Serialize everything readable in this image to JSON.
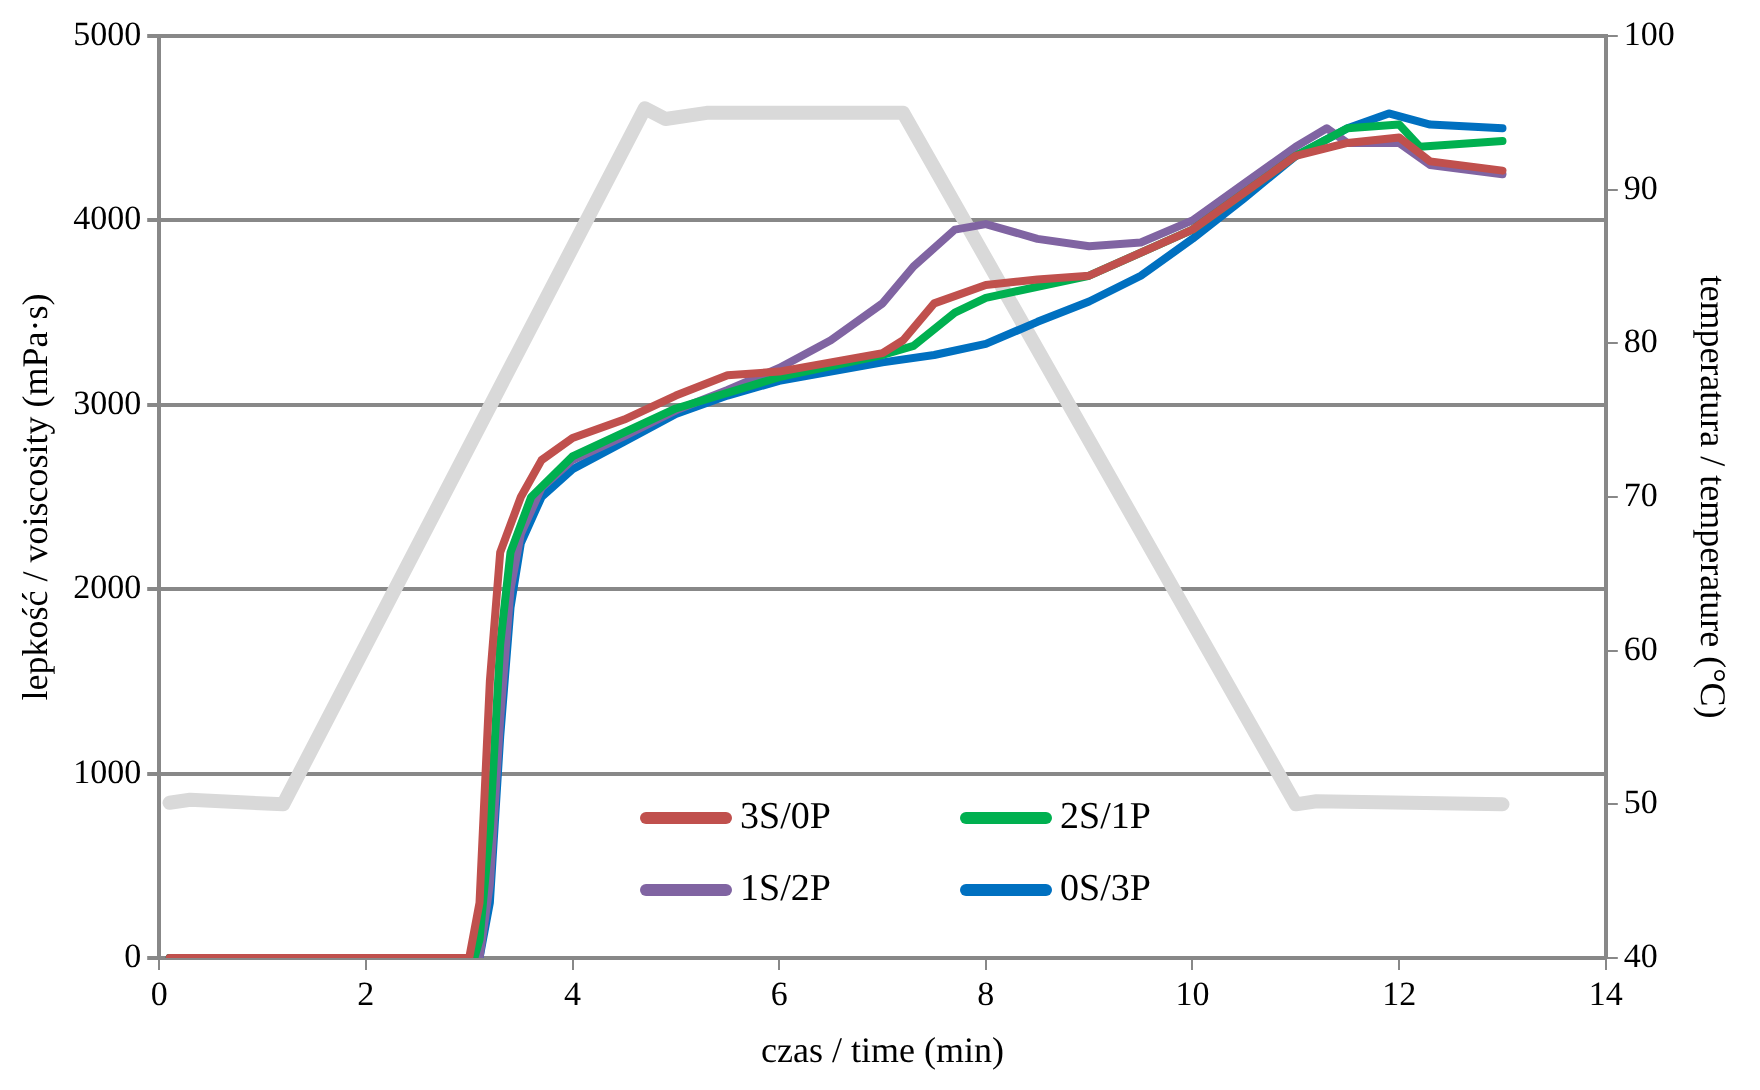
{
  "chart_data": {
    "type": "line",
    "xlabel": "czas / time (min)",
    "ylabel": "lepkość / voiscosity (mPa·s)",
    "y2label": "temperatura / temperature (°C)",
    "xlim": [
      0,
      14
    ],
    "xticks": [
      0,
      2,
      4,
      6,
      8,
      10,
      12,
      14
    ],
    "ylim": [
      0,
      5000
    ],
    "yticks": [
      0,
      1000,
      2000,
      3000,
      4000,
      5000
    ],
    "y2lim": [
      40,
      100
    ],
    "y2ticks": [
      40,
      50,
      60,
      70,
      80,
      90,
      100
    ],
    "grid": "y",
    "legend": "bottom",
    "marker": "none",
    "line_style": "solid",
    "series": [
      {
        "axis": "y2",
        "color": "#d9d9d9",
        "x": [
          0.1,
          0.3,
          1.2,
          4.7,
          4.9,
          5.3,
          7.2,
          11.0,
          11.2,
          13.0
        ],
        "values": [
          50.1,
          50.3,
          50,
          95.3,
          94.6,
          95,
          95,
          50,
          50.2,
          50
        ]
      },
      {
        "name": "3S/0P",
        "color": "#c0504d",
        "x": [
          0.1,
          3.0,
          3.1,
          3.2,
          3.3,
          3.5,
          3.7,
          4,
          4.5,
          5,
          5.5,
          6,
          6.5,
          7,
          7.2,
          7.5,
          8,
          8.5,
          9,
          10,
          11,
          11.5,
          12,
          12.3,
          13
        ],
        "values": [
          0,
          0,
          300,
          1500,
          2200,
          2500,
          2700,
          2820,
          2920,
          3050,
          3160,
          3180,
          3230,
          3280,
          3350,
          3550,
          3650,
          3680,
          3700,
          3950,
          4350,
          4420,
          4450,
          4320,
          4270
        ]
      },
      {
        "name": "2S/1P",
        "color": "#00b050",
        "x": [
          0.1,
          3.05,
          3.1,
          3.2,
          3.3,
          3.4,
          3.6,
          4,
          4.5,
          5,
          6,
          7,
          7.3,
          7.7,
          8,
          9,
          10,
          11,
          11.5,
          12,
          12.2,
          13
        ],
        "values": [
          0,
          0,
          100,
          700,
          1700,
          2200,
          2500,
          2720,
          2850,
          2980,
          3150,
          3270,
          3320,
          3500,
          3580,
          3700,
          3950,
          4350,
          4500,
          4520,
          4400,
          4430
        ]
      },
      {
        "name": "1S/2P",
        "color": "#8064a2",
        "x": [
          0.1,
          3.1,
          3.2,
          3.3,
          3.4,
          3.5,
          3.7,
          4,
          4.5,
          5,
          5.5,
          6,
          6.5,
          7,
          7.3,
          7.7,
          8,
          8.5,
          9,
          9.5,
          10,
          10.5,
          11,
          11.3,
          11.5,
          12,
          12.3,
          13
        ],
        "values": [
          0,
          0,
          400,
          1300,
          2000,
          2300,
          2550,
          2700,
          2830,
          2970,
          3080,
          3200,
          3350,
          3550,
          3750,
          3950,
          3980,
          3900,
          3860,
          3880,
          4000,
          4200,
          4400,
          4500,
          4420,
          4420,
          4300,
          4250
        ]
      },
      {
        "name": "0S/3P",
        "color": "#0070c0",
        "x": [
          0.1,
          3.1,
          3.2,
          3.3,
          3.4,
          3.5,
          3.7,
          4,
          4.5,
          5,
          5.5,
          6,
          7,
          7.5,
          8,
          8.5,
          9,
          9.5,
          10,
          10.5,
          11,
          11.5,
          11.9,
          12.3,
          13
        ],
        "values": [
          0,
          0,
          300,
          1200,
          1900,
          2250,
          2500,
          2650,
          2800,
          2950,
          3050,
          3130,
          3230,
          3270,
          3330,
          3450,
          3560,
          3700,
          3900,
          4120,
          4350,
          4500,
          4580,
          4520,
          4500
        ]
      }
    ]
  }
}
